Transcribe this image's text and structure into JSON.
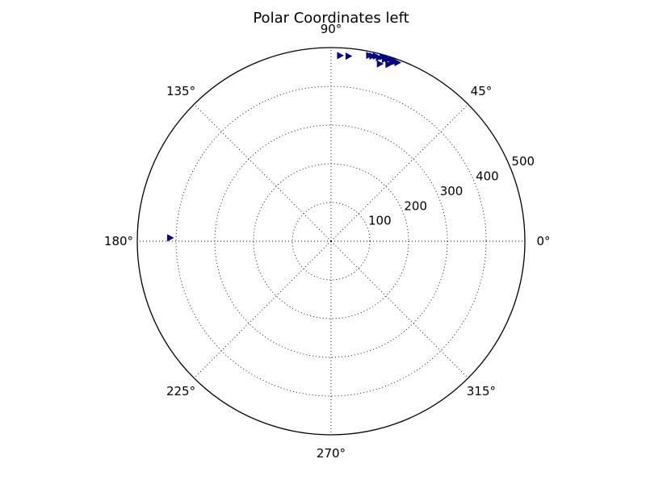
{
  "chart_data": {
    "type": "scatter",
    "projection": "polar",
    "title": "Polar Coordinates left",
    "theta_unit": "degrees",
    "theta_ticks": [
      "0°",
      "45°",
      "90°",
      "135°",
      "180°",
      "225°",
      "270°",
      "315°"
    ],
    "r_ticks": [
      "100",
      "200",
      "300",
      "400",
      "500"
    ],
    "r_tick_values": [
      100,
      200,
      300,
      400,
      500
    ],
    "r_max": 500,
    "r_label_angle_deg": 22.5,
    "grid": true,
    "marker": "triangle-right",
    "series": [
      {
        "color": "#0000b0",
        "points": [
          {
            "theta": 87.2,
            "r": 480
          },
          {
            "theta": 84.6,
            "r": 480
          },
          {
            "theta": 78.4,
            "r": 490
          },
          {
            "theta": 77.4,
            "r": 490
          },
          {
            "theta": 76.4,
            "r": 492
          },
          {
            "theta": 75.4,
            "r": 490
          },
          {
            "theta": 74.4,
            "r": 495
          },
          {
            "theta": 73.5,
            "r": 490
          },
          {
            "theta": 72.6,
            "r": 493
          },
          {
            "theta": 71.6,
            "r": 495
          },
          {
            "theta": 71.1,
            "r": 490
          },
          {
            "theta": 70.4,
            "r": 493
          },
          {
            "theta": 69.6,
            "r": 492
          },
          {
            "theta": 74.6,
            "r": 475
          },
          {
            "theta": 72.0,
            "r": 480
          },
          {
            "theta": 178.8,
            "r": 415
          }
        ]
      }
    ]
  }
}
